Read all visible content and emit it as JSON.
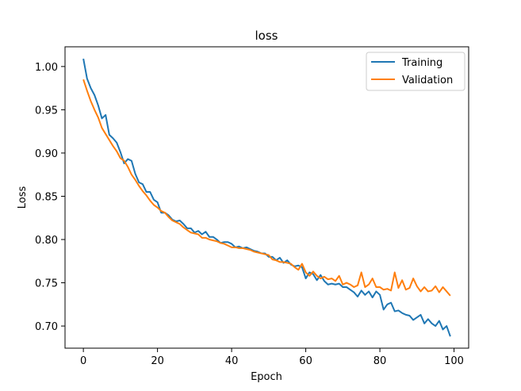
{
  "chart_data": {
    "type": "line",
    "title": "loss",
    "xlabel": "Epoch",
    "ylabel": "Loss",
    "xlim": [
      -4.95,
      103.95
    ],
    "ylim": [
      0.6744,
      1.0228
    ],
    "xticks": [
      0,
      20,
      40,
      60,
      80,
      100
    ],
    "yticks": [
      0.7,
      0.75,
      0.8,
      0.85,
      0.9,
      0.95,
      1.0
    ],
    "xtick_labels": [
      "0",
      "20",
      "40",
      "60",
      "80",
      "100"
    ],
    "ytick_labels": [
      "0.70",
      "0.75",
      "0.80",
      "0.85",
      "0.90",
      "0.95",
      "1.00"
    ],
    "grid": false,
    "legend_position": "top-right",
    "series": [
      {
        "name": "Training",
        "color": "#1f77b4",
        "x": [
          0,
          1,
          2,
          3,
          4,
          5,
          6,
          7,
          8,
          9,
          10,
          11,
          12,
          13,
          14,
          15,
          16,
          17,
          18,
          19,
          20,
          21,
          22,
          23,
          24,
          25,
          26,
          27,
          28,
          29,
          30,
          31,
          32,
          33,
          34,
          35,
          36,
          37,
          38,
          39,
          40,
          41,
          42,
          43,
          44,
          45,
          46,
          47,
          48,
          49,
          50,
          51,
          52,
          53,
          54,
          55,
          56,
          57,
          58,
          59,
          60,
          61,
          62,
          63,
          64,
          65,
          66,
          67,
          68,
          69,
          70,
          71,
          72,
          73,
          74,
          75,
          76,
          77,
          78,
          79,
          80,
          81,
          82,
          83,
          84,
          85,
          86,
          87,
          88,
          89,
          90,
          91,
          92,
          93,
          94,
          95,
          96,
          97,
          98,
          99
        ],
        "y": [
          1.009,
          0.986,
          0.975,
          0.967,
          0.955,
          0.94,
          0.944,
          0.921,
          0.917,
          0.912,
          0.901,
          0.888,
          0.893,
          0.891,
          0.876,
          0.866,
          0.864,
          0.855,
          0.855,
          0.846,
          0.843,
          0.831,
          0.831,
          0.828,
          0.823,
          0.821,
          0.822,
          0.818,
          0.813,
          0.813,
          0.808,
          0.81,
          0.806,
          0.809,
          0.803,
          0.803,
          0.8,
          0.796,
          0.797,
          0.797,
          0.795,
          0.791,
          0.792,
          0.79,
          0.791,
          0.789,
          0.787,
          0.786,
          0.784,
          0.784,
          0.78,
          0.78,
          0.776,
          0.779,
          0.773,
          0.776,
          0.771,
          0.769,
          0.77,
          0.768,
          0.755,
          0.762,
          0.76,
          0.753,
          0.759,
          0.752,
          0.748,
          0.749,
          0.748,
          0.749,
          0.745,
          0.745,
          0.742,
          0.739,
          0.734,
          0.741,
          0.736,
          0.74,
          0.733,
          0.74,
          0.736,
          0.719,
          0.725,
          0.727,
          0.717,
          0.718,
          0.715,
          0.713,
          0.712,
          0.707,
          0.71,
          0.713,
          0.703,
          0.708,
          0.703,
          0.7,
          0.706,
          0.696,
          0.7,
          0.688
        ]
      },
      {
        "name": "Validation",
        "color": "#ff7f0e",
        "x": [
          0,
          1,
          2,
          3,
          4,
          5,
          6,
          7,
          8,
          9,
          10,
          11,
          12,
          13,
          14,
          15,
          16,
          17,
          18,
          19,
          20,
          21,
          22,
          23,
          24,
          25,
          26,
          27,
          28,
          29,
          30,
          31,
          32,
          33,
          34,
          35,
          36,
          37,
          38,
          39,
          40,
          41,
          42,
          43,
          44,
          45,
          46,
          47,
          48,
          49,
          50,
          51,
          52,
          53,
          54,
          55,
          56,
          57,
          58,
          59,
          60,
          61,
          62,
          63,
          64,
          65,
          66,
          67,
          68,
          69,
          70,
          71,
          72,
          73,
          74,
          75,
          76,
          77,
          78,
          79,
          80,
          81,
          82,
          83,
          84,
          85,
          86,
          87,
          88,
          89,
          90,
          91,
          92,
          93,
          94,
          95,
          96,
          97,
          98,
          99
        ],
        "y": [
          0.985,
          0.972,
          0.96,
          0.95,
          0.941,
          0.929,
          0.922,
          0.915,
          0.908,
          0.902,
          0.894,
          0.891,
          0.884,
          0.875,
          0.869,
          0.862,
          0.856,
          0.851,
          0.845,
          0.84,
          0.837,
          0.833,
          0.831,
          0.826,
          0.822,
          0.82,
          0.818,
          0.814,
          0.811,
          0.808,
          0.807,
          0.806,
          0.802,
          0.802,
          0.8,
          0.799,
          0.798,
          0.796,
          0.795,
          0.793,
          0.791,
          0.791,
          0.79,
          0.79,
          0.789,
          0.788,
          0.786,
          0.785,
          0.784,
          0.783,
          0.782,
          0.777,
          0.776,
          0.774,
          0.774,
          0.773,
          0.772,
          0.768,
          0.765,
          0.772,
          0.762,
          0.758,
          0.763,
          0.758,
          0.755,
          0.757,
          0.754,
          0.755,
          0.752,
          0.758,
          0.748,
          0.75,
          0.748,
          0.745,
          0.747,
          0.762,
          0.745,
          0.748,
          0.755,
          0.745,
          0.745,
          0.742,
          0.743,
          0.741,
          0.762,
          0.744,
          0.753,
          0.742,
          0.744,
          0.755,
          0.746,
          0.74,
          0.745,
          0.74,
          0.741,
          0.746,
          0.739,
          0.745,
          0.74,
          0.735
        ]
      }
    ]
  }
}
